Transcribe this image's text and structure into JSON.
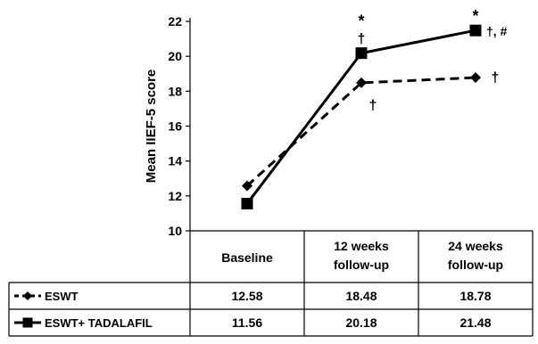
{
  "chart_data": {
    "type": "line",
    "ylabel": "Mean IIEF-5 score",
    "ylim": [
      10,
      22
    ],
    "yticks": [
      10,
      12,
      14,
      16,
      18,
      20,
      22
    ],
    "grid": false,
    "categories": [
      [
        "Baseline"
      ],
      [
        "12 weeks",
        "follow-up"
      ],
      [
        "24 weeks",
        "follow-up"
      ]
    ],
    "series": [
      {
        "name": "ESWT",
        "marker": "diamond",
        "line_style": "dashed",
        "color": "#000000",
        "values": [
          12.58,
          18.48,
          18.78
        ],
        "value_labels": [
          "12.58",
          "18.48",
          "18.78"
        ],
        "annotations": [
          "",
          "†",
          "†"
        ]
      },
      {
        "name": "ESWT+ TADALAFIL",
        "marker": "square",
        "line_style": "solid",
        "color": "#000000",
        "values": [
          11.56,
          20.18,
          21.48
        ],
        "value_labels": [
          "11.56",
          "20.18",
          "21.48"
        ],
        "annotations": [
          "",
          "*\n†",
          "*\n†, #"
        ]
      }
    ]
  }
}
